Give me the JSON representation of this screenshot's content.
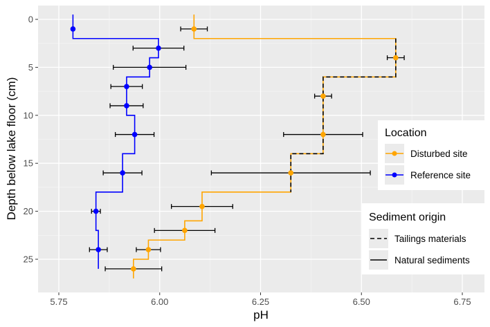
{
  "chart_data": {
    "type": "line",
    "xlabel": "pH",
    "ylabel": "Depth below lake floor (cm)",
    "xlim": [
      5.7,
      6.8
    ],
    "ylim": [
      0,
      27
    ],
    "y_reversed": true,
    "x_ticks": [
      "5.75",
      "6.00",
      "6.25",
      "6.50",
      "6.75"
    ],
    "y_ticks": [
      "0",
      "5",
      "10",
      "15",
      "20",
      "25"
    ],
    "grid": true,
    "panel_background": "#ebebeb",
    "legends": [
      {
        "title": "Location",
        "position": "right",
        "entries": [
          {
            "label": "Disturbed site",
            "color": "#FFA500"
          },
          {
            "label": "Reference site",
            "color": "#0000FF"
          }
        ]
      },
      {
        "title": "Sediment origin",
        "position": "right",
        "entries": [
          {
            "label": "Tailings materials",
            "linetype": "dashed"
          },
          {
            "label": "Natural sediments",
            "linetype": "solid"
          }
        ]
      }
    ],
    "series": [
      {
        "name": "Disturbed site",
        "color": "#FFA500",
        "points": [
          {
            "depth": 1,
            "ph": 6.085,
            "err": 0.033
          },
          {
            "depth": 4,
            "ph": 6.585,
            "err": 0.021
          },
          {
            "depth": 8,
            "ph": 6.405,
            "err": 0.021
          },
          {
            "depth": 12,
            "ph": 6.405,
            "err": 0.098
          },
          {
            "depth": 16,
            "ph": 6.325,
            "err": 0.197
          },
          {
            "depth": 19.5,
            "ph": 6.105,
            "err": 0.076
          },
          {
            "depth": 22,
            "ph": 6.062,
            "err": 0.075
          },
          {
            "depth": 24,
            "ph": 5.972,
            "err": 0.03
          },
          {
            "depth": 26,
            "ph": 5.935,
            "err": 0.07
          }
        ],
        "step_path": [
          [
            6.085,
            -0.5
          ],
          [
            6.085,
            2
          ],
          [
            6.585,
            2
          ],
          [
            6.585,
            6
          ],
          [
            6.405,
            6
          ],
          [
            6.405,
            14
          ],
          [
            6.325,
            14
          ],
          [
            6.325,
            18
          ],
          [
            6.105,
            18
          ],
          [
            6.105,
            21
          ],
          [
            6.062,
            21
          ],
          [
            6.062,
            23
          ],
          [
            5.972,
            23
          ],
          [
            5.972,
            25
          ],
          [
            5.935,
            25
          ],
          [
            5.935,
            27
          ]
        ],
        "dashed_segments": [
          [
            [
              6.585,
              2
            ],
            [
              6.585,
              6
            ],
            [
              6.405,
              6
            ],
            [
              6.405,
              14
            ],
            [
              6.325,
              14
            ],
            [
              6.325,
              18
            ]
          ]
        ]
      },
      {
        "name": "Reference site",
        "color": "#0000FF",
        "points": [
          {
            "depth": 1,
            "ph": 5.785,
            "err": 0.002
          },
          {
            "depth": 3,
            "ph": 5.997,
            "err": 0.063
          },
          {
            "depth": 5,
            "ph": 5.975,
            "err": 0.09
          },
          {
            "depth": 7,
            "ph": 5.918,
            "err": 0.039
          },
          {
            "depth": 9,
            "ph": 5.918,
            "err": 0.041
          },
          {
            "depth": 12,
            "ph": 5.938,
            "err": 0.048
          },
          {
            "depth": 16,
            "ph": 5.908,
            "err": 0.048
          },
          {
            "depth": 20,
            "ph": 5.842,
            "err": 0.011
          },
          {
            "depth": 24,
            "ph": 5.848,
            "err": 0.022
          }
        ],
        "step_path": [
          [
            5.785,
            -0.5
          ],
          [
            5.785,
            2
          ],
          [
            5.997,
            2
          ],
          [
            5.997,
            4
          ],
          [
            5.975,
            4
          ],
          [
            5.975,
            6
          ],
          [
            5.918,
            6
          ],
          [
            5.918,
            10
          ],
          [
            5.938,
            10
          ],
          [
            5.938,
            14
          ],
          [
            5.908,
            14
          ],
          [
            5.908,
            18
          ],
          [
            5.842,
            18
          ],
          [
            5.842,
            22
          ],
          [
            5.848,
            22
          ],
          [
            5.848,
            26
          ]
        ]
      }
    ]
  }
}
